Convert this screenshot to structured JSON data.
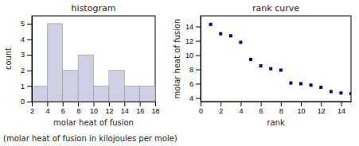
{
  "chart_data": [
    {
      "type": "histogram",
      "title": "histogram",
      "x_label": "molar heat of fusion",
      "y_label": "count",
      "bins": [
        2,
        4,
        6,
        8,
        10,
        12,
        14,
        16,
        18
      ],
      "values": [
        1,
        5,
        2,
        3,
        1,
        2,
        1,
        1
      ],
      "color": "#cdd0e3",
      "xlim": [
        2,
        18
      ],
      "ylim": [
        0,
        5.5
      ],
      "xticks": [
        2,
        4,
        6,
        8,
        10,
        12,
        14,
        16,
        18
      ],
      "yticks": [
        0,
        1,
        2,
        3,
        4,
        5
      ]
    },
    {
      "type": "scatter",
      "title": "rank curve",
      "x_label": "rank",
      "y_label": "molar heat of fusion",
      "x": [
        1,
        2,
        3,
        4,
        5,
        6,
        7,
        8,
        9,
        10,
        11,
        12,
        13,
        14,
        15
      ],
      "values": [
        14.3,
        13.0,
        12.7,
        11.8,
        9.4,
        8.5,
        8.1,
        7.9,
        6.1,
        6.0,
        5.8,
        5.5,
        4.9,
        4.7,
        4.6
      ],
      "color": "#00008b",
      "marker": "square",
      "xlim": [
        0,
        15
      ],
      "ylim": [
        3.5,
        15.5
      ],
      "xticks": [
        0,
        2,
        4,
        6,
        8,
        10,
        12,
        14
      ],
      "yticks": [
        4,
        6,
        8,
        10,
        12,
        14
      ]
    }
  ],
  "caption": "(molar heat of fusion in kilojoules per mole)"
}
